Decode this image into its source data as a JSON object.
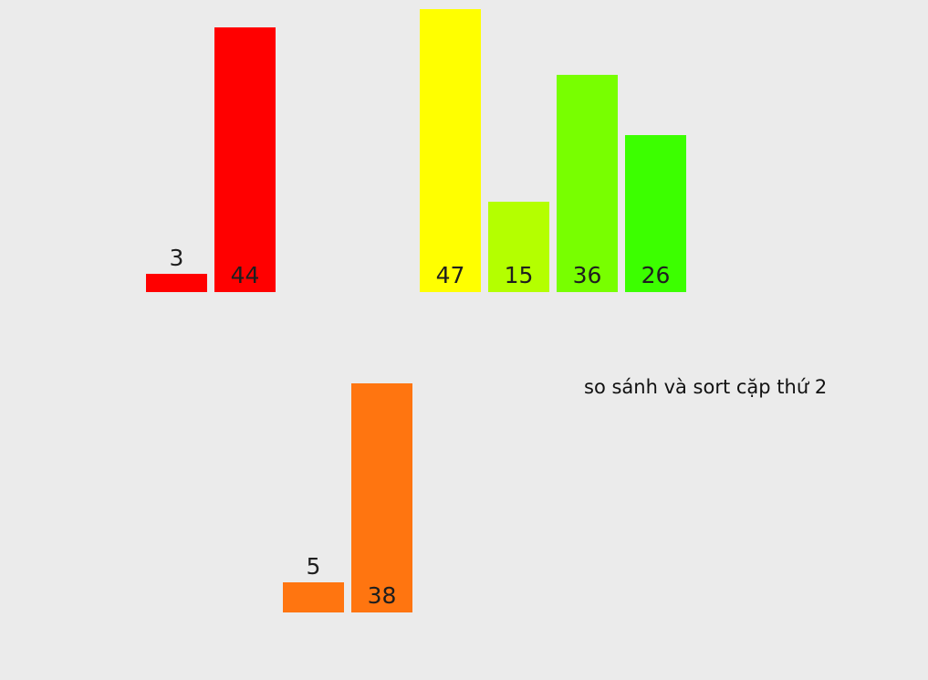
{
  "caption": "so sánh và sort cặp thứ 2",
  "groups": [
    {
      "name": "sorted-pair-1",
      "bars": [
        {
          "value": 3,
          "color": "#ff0000"
        },
        {
          "value": 44,
          "color": "#ff0000"
        }
      ]
    },
    {
      "name": "unsorted-remaining",
      "bars": [
        {
          "value": 47,
          "color": "#ffff00"
        },
        {
          "value": 15,
          "color": "#b4ff00"
        },
        {
          "value": 36,
          "color": "#78ff00"
        },
        {
          "value": 26,
          "color": "#3cff00"
        }
      ]
    },
    {
      "name": "sorted-pair-2",
      "bars": [
        {
          "value": 5,
          "color": "#ff7510"
        },
        {
          "value": 38,
          "color": "#ff7510"
        }
      ]
    }
  ]
}
